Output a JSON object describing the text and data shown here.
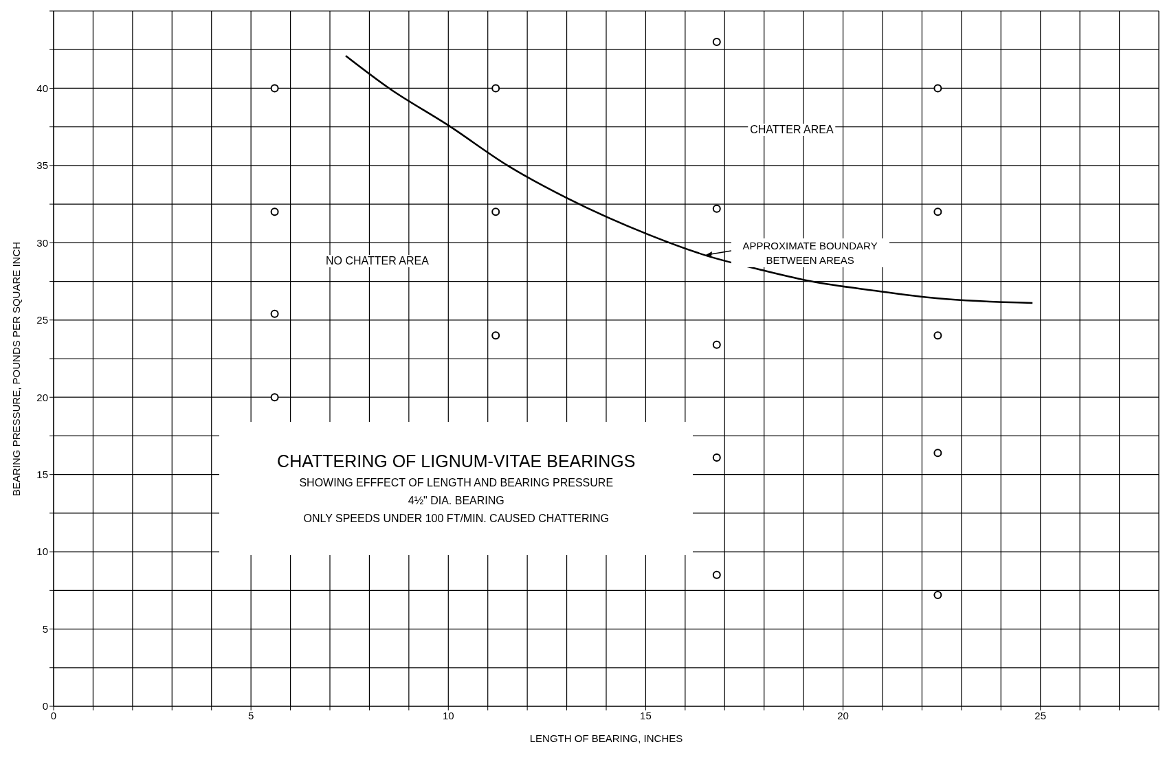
{
  "chart_data": {
    "type": "scatter",
    "title": "CHATTERING OF LIGNUM-VITAE BEARINGS",
    "subtitle": "SHOWING EFFFECT OF LENGTH AND BEARING PRESSURE",
    "xlabel": "LENGTH OF BEARING, INCHES",
    "ylabel": "BEARING PRESSURE, POUNDS PER SQUARE INCH",
    "annotations": [
      "4½\" DIA. BEARING",
      "ONLY SPEEDS UNDER 100 FT/MIN. CAUSED CHATTERING",
      "CHATTER AREA",
      "NO CHATTER AREA",
      "APPROXIMATE BOUNDARY BETWEEN AREAS"
    ],
    "series": [
      {
        "color": "#000000",
        "x": [
          5.6,
          5.6,
          5.6,
          5.6,
          11.2,
          11.2,
          16.8,
          16.8,
          16.8,
          22.4,
          22.4,
          22.4
        ],
        "values": [
          40,
          32,
          25.4,
          20,
          32,
          24,
          23.4,
          16.1,
          8.5,
          24,
          16.4,
          7.2
        ]
      },
      {
        "color": "#000000",
        "x": [
          11.2,
          16.8,
          16.8,
          22.4,
          22.4
        ],
        "values": [
          40,
          43,
          32.2,
          40,
          32
        ]
      },
      {
        "type": "line",
        "color": "#000000",
        "marker": "none",
        "x": [
          7.4,
          8.5,
          10,
          11.5,
          13,
          15.1,
          16.5,
          18,
          19.2,
          20.8,
          22.4,
          24.8
        ],
        "values": [
          42.1,
          40,
          37.6,
          35,
          32.9,
          30.5,
          29.2,
          28.2,
          27.5,
          26.9,
          26.4,
          26.1
        ]
      }
    ],
    "xlim": [
      0,
      28
    ],
    "xticks": [
      0,
      {
        "value": 1,
        "label": null
      },
      {
        "value": 2,
        "label": null
      },
      {
        "value": 3,
        "label": null
      },
      {
        "value": 4,
        "label": null
      },
      5,
      {
        "value": 6,
        "label": null
      },
      {
        "value": 7,
        "label": null
      },
      {
        "value": 8,
        "label": null
      },
      {
        "value": 9,
        "label": null
      },
      10,
      {
        "value": 11,
        "label": null
      },
      {
        "value": 12,
        "label": null
      },
      {
        "value": 13,
        "label": null
      },
      {
        "value": 14,
        "label": null
      },
      15,
      {
        "value": 16,
        "label": null
      },
      {
        "value": 17,
        "label": null
      },
      {
        "value": 18,
        "label": null
      },
      {
        "value": 19,
        "label": null
      },
      20,
      {
        "value": 21,
        "label": null
      },
      {
        "value": 22,
        "label": null
      },
      {
        "value": 23,
        "label": null
      },
      {
        "value": 24,
        "label": null
      },
      25,
      {
        "value": 26,
        "label": null
      },
      {
        "value": 27,
        "label": null
      },
      {
        "value": 28,
        "label": null
      }
    ],
    "ylim": [
      0,
      45
    ],
    "yticks": [
      0,
      {
        "value": 2.5,
        "label": null
      },
      5,
      {
        "value": 7.5,
        "label": null
      },
      10,
      {
        "value": 12.5,
        "label": null
      },
      15,
      {
        "value": 17.5,
        "label": null
      },
      20,
      {
        "value": 22.5,
        "label": null
      },
      25,
      {
        "value": 27.5,
        "label": null
      },
      30,
      {
        "value": 32.5,
        "label": null
      },
      35,
      {
        "value": 37.5,
        "label": null
      },
      40,
      {
        "value": 42.5,
        "label": null
      },
      {
        "value": 45,
        "label": null
      }
    ],
    "grid": true,
    "marker": "circle",
    "line_style": "solid"
  }
}
